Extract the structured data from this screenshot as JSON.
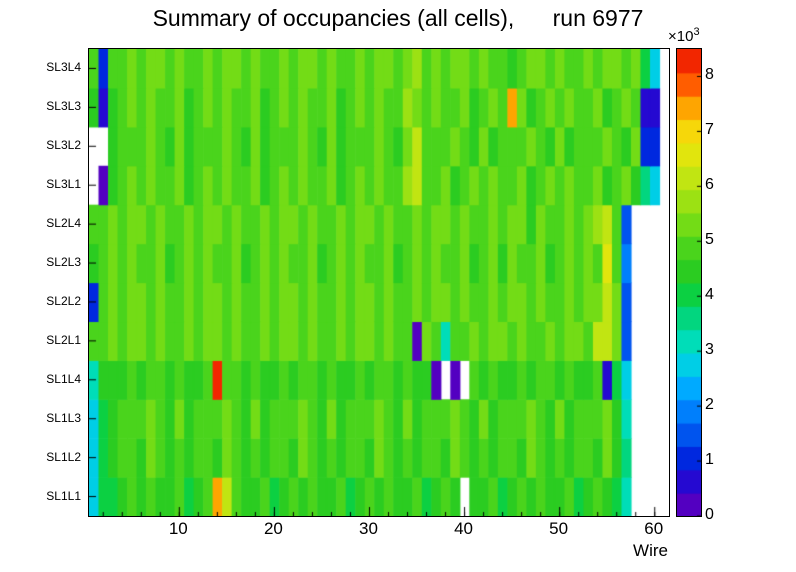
{
  "title": "Summary of occupancies (all cells),      run 6977",
  "axes": {
    "x_label": "Wire",
    "x_ticks": [
      10,
      20,
      30,
      40,
      50,
      60
    ],
    "x_minor_step": 2,
    "z_ticks": [
      0,
      1,
      2,
      3,
      4,
      5,
      6,
      7,
      8
    ],
    "z_tick_scale": 1000,
    "z_exponent_base": "×10",
    "z_exponent_power": "3"
  },
  "chart_data": {
    "type": "heatmap",
    "title": "Summary of occupancies (all cells), run 6977",
    "xlabel": "Wire",
    "ylabel": "",
    "x_range": [
      0.5,
      61.5
    ],
    "z_range": [
      0,
      8500
    ],
    "n_contours": 20,
    "legend_position": "right-colorbar",
    "grid": false,
    "empty_bin_color": "#ffffff",
    "palette": [
      "#6a00b8",
      "#3300cc",
      "#0022dd",
      "#0055ee",
      "#0088ff",
      "#00bbff",
      "#00e0d0",
      "#00d890",
      "#09d045",
      "#2ecc1e",
      "#52d61c",
      "#86df12",
      "#b4e414",
      "#dde80e",
      "#f6d80a",
      "#ff9e00",
      "#ff4400",
      "#e81000"
    ],
    "rows_bottom_to_top": [
      {
        "label": "SL1L1",
        "values": [
          2600,
          3900,
          4200,
          4500,
          4700,
          4400,
          4900,
          4600,
          4300,
          4800,
          4200,
          4500,
          4700,
          7500,
          6200,
          4900,
          4600,
          4300,
          4800,
          4200,
          4500,
          4700,
          4400,
          4900,
          4600,
          4300,
          4800,
          4200,
          4500,
          4700,
          4400,
          4900,
          4600,
          4300,
          4800,
          4200,
          4500,
          4700,
          4400,
          null,
          4600,
          4300,
          4800,
          4200,
          4500,
          4700,
          4400,
          4900,
          4600,
          4300,
          4800,
          4200,
          4500,
          4700,
          4400,
          4100,
          3200,
          null,
          null,
          null,
          null
        ]
      },
      {
        "label": "SL1L2",
        "values": [
          2800,
          4100,
          4400,
          4700,
          4900,
          4600,
          5100,
          4800,
          4500,
          5000,
          4400,
          4700,
          4900,
          4600,
          5100,
          4800,
          4500,
          5000,
          4400,
          4700,
          4900,
          4600,
          5100,
          4800,
          4500,
          5000,
          4400,
          4700,
          4900,
          4600,
          5100,
          4800,
          4500,
          5000,
          4400,
          4700,
          4900,
          4600,
          5100,
          4800,
          4500,
          5000,
          4400,
          4700,
          4900,
          4600,
          5100,
          4800,
          4500,
          5000,
          4400,
          4700,
          4900,
          4600,
          5100,
          4300,
          3400,
          null,
          null,
          null,
          null
        ]
      },
      {
        "label": "SL1L3",
        "values": [
          2700,
          4200,
          4500,
          4800,
          5000,
          4700,
          5200,
          4900,
          4600,
          5100,
          4500,
          4800,
          5000,
          4700,
          5200,
          4900,
          4600,
          5100,
          4500,
          4800,
          5000,
          4700,
          5200,
          4900,
          4600,
          5100,
          4500,
          4800,
          5000,
          4700,
          5200,
          4900,
          4600,
          5100,
          4500,
          4800,
          5000,
          4700,
          5200,
          4900,
          4600,
          5100,
          4500,
          4800,
          5000,
          4700,
          5200,
          4900,
          4600,
          5100,
          4500,
          4800,
          5000,
          4700,
          5200,
          4400,
          3300,
          null,
          null,
          null,
          null
        ]
      },
      {
        "label": "SL1L4",
        "values": [
          3000,
          4300,
          4300,
          4600,
          4800,
          4500,
          5000,
          4700,
          4400,
          4900,
          4300,
          4600,
          4800,
          8300,
          5000,
          4700,
          4400,
          4900,
          4300,
          4600,
          4800,
          4500,
          5000,
          4700,
          4400,
          4900,
          4300,
          4600,
          4800,
          4500,
          5000,
          4700,
          4400,
          4900,
          4300,
          4600,
          300,
          null,
          300,
          null,
          4700,
          4400,
          4900,
          4300,
          4600,
          4800,
          4500,
          5000,
          4700,
          4400,
          4900,
          4300,
          4600,
          4800,
          500,
          4200,
          2900,
          null,
          null,
          null,
          null
        ]
      },
      {
        "label": "SL2L1",
        "values": [
          4700,
          5000,
          5200,
          4900,
          5400,
          5100,
          4800,
          5300,
          4700,
          5000,
          5200,
          4900,
          5400,
          5100,
          4800,
          5300,
          4700,
          5000,
          5200,
          4900,
          5400,
          5100,
          4800,
          5300,
          4700,
          5000,
          5200,
          4900,
          5400,
          5100,
          4800,
          5300,
          4700,
          5000,
          400,
          5100,
          4800,
          3300,
          4700,
          5000,
          5200,
          4900,
          5400,
          5100,
          4800,
          5300,
          4700,
          5000,
          5200,
          4900,
          5400,
          5100,
          4800,
          6000,
          6300,
          5200,
          1400,
          null,
          null,
          null,
          null
        ]
      },
      {
        "label": "SL2L2",
        "values": [
          1200,
          5000,
          5200,
          4900,
          5400,
          5100,
          4800,
          5300,
          4700,
          5000,
          5200,
          4900,
          5400,
          5100,
          4800,
          5300,
          4700,
          5000,
          5200,
          4900,
          5400,
          5100,
          4800,
          5300,
          4700,
          5000,
          5200,
          4900,
          5400,
          5100,
          4800,
          5300,
          4700,
          5000,
          5200,
          4900,
          5400,
          5100,
          4800,
          5300,
          4700,
          5000,
          5200,
          4900,
          5400,
          5100,
          4800,
          5300,
          4700,
          5000,
          5200,
          4900,
          5400,
          5100,
          6200,
          5100,
          1400,
          null,
          null,
          null,
          null
        ]
      },
      {
        "label": "SL2L3",
        "values": [
          4600,
          4900,
          5100,
          4800,
          5300,
          5000,
          4700,
          5200,
          4600,
          4900,
          5100,
          4800,
          5300,
          5000,
          4700,
          5200,
          4600,
          4900,
          5100,
          4800,
          5300,
          5000,
          4700,
          5200,
          4600,
          4900,
          5100,
          4800,
          5300,
          5000,
          4700,
          5200,
          4600,
          4900,
          5100,
          4800,
          5300,
          5000,
          4700,
          5200,
          4600,
          4900,
          5100,
          4300,
          5300,
          5000,
          4700,
          5200,
          4600,
          4900,
          5100,
          4800,
          5300,
          5000,
          6400,
          4900,
          2000,
          null,
          null,
          null,
          null
        ]
      },
      {
        "label": "SL2L4",
        "values": [
          4700,
          5000,
          5200,
          4900,
          5400,
          5100,
          4800,
          5300,
          4700,
          5000,
          5200,
          4900,
          5400,
          5100,
          4800,
          5300,
          4700,
          5000,
          5200,
          4900,
          5400,
          5100,
          4800,
          5300,
          4700,
          5000,
          5200,
          4900,
          5400,
          5100,
          4800,
          5300,
          4700,
          5000,
          5200,
          4900,
          5400,
          5100,
          4800,
          5300,
          4700,
          5000,
          5200,
          4900,
          5400,
          5100,
          4400,
          5300,
          4700,
          5000,
          5200,
          4900,
          5400,
          5900,
          6300,
          5000,
          1400,
          null,
          null,
          null,
          null
        ]
      },
      {
        "label": "SL3L1",
        "values": [
          null,
          350,
          4600,
          4900,
          5100,
          4800,
          5300,
          5000,
          4700,
          5200,
          4600,
          4900,
          5100,
          4800,
          5300,
          5000,
          4700,
          5200,
          4600,
          4900,
          5100,
          4800,
          5300,
          5000,
          4700,
          5200,
          4600,
          4900,
          5100,
          4800,
          5300,
          5000,
          4700,
          5800,
          6000,
          5000,
          4700,
          5200,
          4600,
          4900,
          5100,
          4800,
          5300,
          5000,
          4700,
          5200,
          4600,
          4900,
          5100,
          4800,
          5300,
          5000,
          4700,
          5200,
          4600,
          4900,
          5100,
          4400,
          3600,
          2900,
          null
        ]
      },
      {
        "label": "SL3L2",
        "values": [
          null,
          null,
          4500,
          4800,
          5000,
          4700,
          5200,
          4900,
          4600,
          5100,
          4500,
          4800,
          5000,
          4700,
          5200,
          4900,
          4600,
          5100,
          4500,
          4800,
          5000,
          4700,
          5200,
          4900,
          4600,
          5100,
          4500,
          4800,
          5000,
          4700,
          5200,
          4900,
          4600,
          5100,
          6300,
          4800,
          5000,
          4700,
          5200,
          4900,
          4600,
          5100,
          4500,
          4800,
          5000,
          4700,
          5200,
          4900,
          4600,
          5100,
          4500,
          4800,
          5000,
          4700,
          5200,
          4900,
          4600,
          5100,
          900,
          900,
          null
        ]
      },
      {
        "label": "SL3L3",
        "values": [
          4600,
          800,
          4600,
          4900,
          5100,
          4800,
          5300,
          5000,
          4700,
          5200,
          4600,
          4900,
          5100,
          4800,
          5300,
          5000,
          4700,
          5200,
          4600,
          4900,
          5100,
          4800,
          5300,
          5000,
          4700,
          5200,
          4600,
          4900,
          5100,
          4800,
          5300,
          5000,
          4700,
          5600,
          5100,
          4800,
          5300,
          5000,
          4700,
          5200,
          4600,
          4900,
          5100,
          4800,
          7600,
          5200,
          4600,
          4900,
          5100,
          4800,
          5300,
          5000,
          4700,
          5200,
          4600,
          4900,
          5100,
          4800,
          800,
          800,
          null
        ]
      },
      {
        "label": "SL3L4",
        "values": [
          4800,
          900,
          4700,
          5000,
          5200,
          4900,
          5400,
          5100,
          4800,
          5300,
          4700,
          5000,
          5200,
          4900,
          5400,
          5100,
          4800,
          5300,
          4700,
          5000,
          5200,
          4900,
          5400,
          5100,
          4800,
          5300,
          4700,
          5000,
          5200,
          4900,
          5400,
          5100,
          4800,
          5300,
          5800,
          5000,
          5200,
          4900,
          5400,
          5100,
          4800,
          5300,
          4700,
          5000,
          4400,
          4900,
          5400,
          5100,
          4800,
          5300,
          4700,
          5000,
          5200,
          4900,
          5400,
          5100,
          4800,
          5300,
          4200,
          2800,
          null
        ]
      }
    ]
  }
}
